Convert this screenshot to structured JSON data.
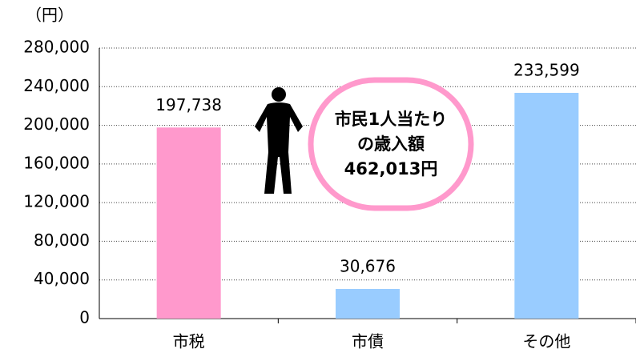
{
  "chart_data": {
    "type": "bar",
    "y_axis_label": "（円）",
    "categories": [
      "市税",
      "市債",
      "その他"
    ],
    "values": [
      197738,
      30676,
      233599
    ],
    "value_labels": [
      "197,738",
      "30,676",
      "233,599"
    ],
    "colors": [
      "#ff99cc",
      "#99ccff",
      "#99ccff"
    ],
    "ylim": [
      0,
      280000
    ],
    "yticks": [
      0,
      {
        "value": 40000,
        "label": "40,000"
      },
      {
        "value": 80000,
        "label": "80,000"
      },
      {
        "value": 120000,
        "label": "120,000"
      },
      {
        "value": 160000,
        "label": "160,000"
      },
      {
        "value": 200000,
        "label": "200,000"
      },
      {
        "value": 240000,
        "label": "240,000"
      },
      {
        "value": 280000,
        "label": "280,000"
      }
    ],
    "grid": true,
    "annotation": [
      "市民1人当たり",
      "の歳入額",
      "462,013円"
    ]
  }
}
